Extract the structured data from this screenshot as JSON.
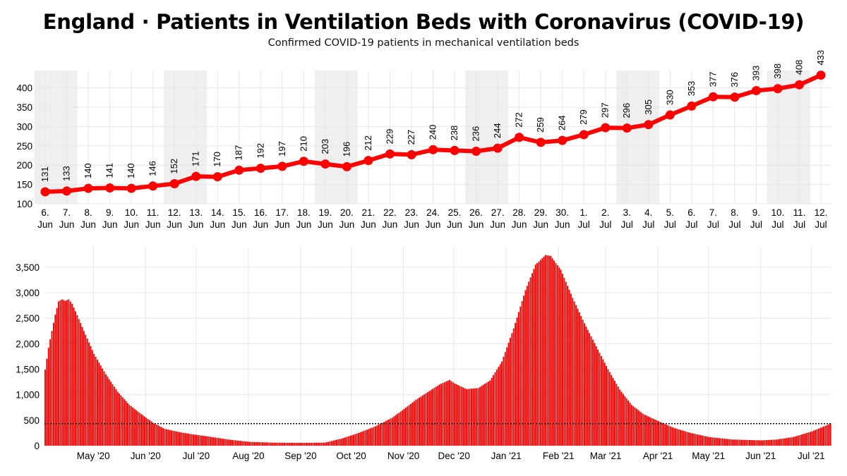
{
  "header": {
    "title": "England · Patients in Ventilation Beds with Coronavirus (COVID-19)",
    "subtitle": "Confirmed COVID-19 patients in mechanical ventilation beds"
  },
  "colors": {
    "series": "#ff0000",
    "weekend_band": "#efefef",
    "grid": "#e6e6e6",
    "reference_line": "#000000"
  },
  "chart_data": [
    {
      "type": "line",
      "title": "",
      "x": [
        "6. Jun",
        "7. Jun",
        "8. Jun",
        "9. Jun",
        "10. Jun",
        "11. Jun",
        "12. Jun",
        "13. Jun",
        "14. Jun",
        "15. Jun",
        "16. Jun",
        "17. Jun",
        "18. Jun",
        "19. Jun",
        "20. Jun",
        "21. Jun",
        "22. Jun",
        "23. Jun",
        "24. Jun",
        "25. Jun",
        "26. Jun",
        "27. Jun",
        "28. Jun",
        "29. Jun",
        "30. Jun",
        "1. Jul",
        "2. Jul",
        "3. Jul",
        "4. Jul",
        "5. Jul",
        "6. Jul",
        "7. Jul",
        "8. Jul",
        "9. Jul",
        "10. Jul",
        "11. Jul",
        "12. Jul"
      ],
      "x_day": [
        "6.",
        "7.",
        "8.",
        "9.",
        "10.",
        "11.",
        "12.",
        "13.",
        "14.",
        "15.",
        "16.",
        "17.",
        "18.",
        "19.",
        "20.",
        "21.",
        "22.",
        "23.",
        "24.",
        "25.",
        "26.",
        "27.",
        "28.",
        "29.",
        "30.",
        "1.",
        "2.",
        "3.",
        "4.",
        "5.",
        "6.",
        "7.",
        "8.",
        "9.",
        "10.",
        "11.",
        "12."
      ],
      "x_month": [
        "Jun",
        "Jun",
        "Jun",
        "Jun",
        "Jun",
        "Jun",
        "Jun",
        "Jun",
        "Jun",
        "Jun",
        "Jun",
        "Jun",
        "Jun",
        "Jun",
        "Jun",
        "Jun",
        "Jun",
        "Jun",
        "Jun",
        "Jun",
        "Jun",
        "Jun",
        "Jun",
        "Jun",
        "Jun",
        "Jul",
        "Jul",
        "Jul",
        "Jul",
        "Jul",
        "Jul",
        "Jul",
        "Jul",
        "Jul",
        "Jul",
        "Jul",
        "Jul"
      ],
      "values": [
        131,
        133,
        140,
        141,
        140,
        146,
        152,
        171,
        170,
        187,
        192,
        197,
        210,
        203,
        196,
        212,
        229,
        227,
        240,
        238,
        236,
        244,
        272,
        259,
        264,
        279,
        297,
        296,
        305,
        330,
        353,
        377,
        376,
        393,
        398,
        408,
        433
      ],
      "data_labels": [
        "131",
        "133",
        "140",
        "141",
        "140",
        "146",
        "152",
        "171",
        "170",
        "187",
        "192",
        "197",
        "210",
        "203",
        "196",
        "212",
        "229",
        "227",
        "240",
        "238",
        "236",
        "244",
        "272",
        "259",
        "264",
        "279",
        "297",
        "296",
        "305",
        "330",
        "353",
        "377",
        "376",
        "393",
        "398",
        "408",
        "433"
      ],
      "weekend_bands": [
        [
          "6. Jun",
          "7. Jun"
        ],
        [
          "12. Jun",
          "13. Jun"
        ],
        [
          "19. Jun",
          "20. Jun"
        ],
        [
          "26. Jun",
          "27. Jun"
        ],
        [
          "3. Jul",
          "4. Jul"
        ],
        [
          "10. Jul",
          "11. Jul"
        ]
      ],
      "ylim": [
        100,
        445
      ],
      "yticks": [
        100,
        150,
        200,
        250,
        300,
        350,
        400
      ],
      "ytick_labels": [
        "100",
        "150",
        "200",
        "250",
        "300",
        "350",
        "400"
      ],
      "grid": true
    },
    {
      "type": "bar",
      "title": "",
      "start_date": "2020-04-02",
      "keypoints": [
        [
          "2020-04-02",
          1490
        ],
        [
          "2020-04-04",
          1920
        ],
        [
          "2020-04-06",
          2250
        ],
        [
          "2020-04-08",
          2570
        ],
        [
          "2020-04-10",
          2830
        ],
        [
          "2020-04-12",
          2870
        ],
        [
          "2020-04-14",
          2840
        ],
        [
          "2020-04-16",
          2870
        ],
        [
          "2020-04-18",
          2780
        ],
        [
          "2020-04-21",
          2560
        ],
        [
          "2020-04-25",
          2250
        ],
        [
          "2020-05-01",
          1800
        ],
        [
          "2020-05-08",
          1400
        ],
        [
          "2020-05-15",
          1060
        ],
        [
          "2020-05-22",
          800
        ],
        [
          "2020-05-29",
          620
        ],
        [
          "2020-06-05",
          450
        ],
        [
          "2020-06-12",
          330
        ],
        [
          "2020-06-20",
          270
        ],
        [
          "2020-06-28",
          225
        ],
        [
          "2020-07-08",
          180
        ],
        [
          "2020-07-20",
          120
        ],
        [
          "2020-08-01",
          75
        ],
        [
          "2020-08-15",
          60
        ],
        [
          "2020-09-01",
          55
        ],
        [
          "2020-09-15",
          60
        ],
        [
          "2020-09-25",
          140
        ],
        [
          "2020-10-05",
          250
        ],
        [
          "2020-10-15",
          380
        ],
        [
          "2020-10-25",
          550
        ],
        [
          "2020-11-01",
          720
        ],
        [
          "2020-11-08",
          900
        ],
        [
          "2020-11-15",
          1050
        ],
        [
          "2020-11-22",
          1200
        ],
        [
          "2020-11-28",
          1290
        ],
        [
          "2020-12-01",
          1220
        ],
        [
          "2020-12-08",
          1110
        ],
        [
          "2020-12-15",
          1130
        ],
        [
          "2020-12-22",
          1280
        ],
        [
          "2020-12-29",
          1650
        ],
        [
          "2021-01-05",
          2300
        ],
        [
          "2021-01-12",
          3050
        ],
        [
          "2021-01-18",
          3550
        ],
        [
          "2021-01-24",
          3740
        ],
        [
          "2021-01-27",
          3720
        ],
        [
          "2021-02-02",
          3450
        ],
        [
          "2021-02-09",
          2900
        ],
        [
          "2021-02-16",
          2400
        ],
        [
          "2021-02-23",
          1950
        ],
        [
          "2021-03-02",
          1500
        ],
        [
          "2021-03-09",
          1100
        ],
        [
          "2021-03-16",
          800
        ],
        [
          "2021-03-23",
          620
        ],
        [
          "2021-04-01",
          480
        ],
        [
          "2021-04-10",
          350
        ],
        [
          "2021-04-20",
          250
        ],
        [
          "2021-05-01",
          170
        ],
        [
          "2021-05-15",
          120
        ],
        [
          "2021-06-01",
          105
        ],
        [
          "2021-06-10",
          120
        ],
        [
          "2021-06-20",
          170
        ],
        [
          "2021-07-01",
          280
        ],
        [
          "2021-07-12",
          433
        ]
      ],
      "reference_line": 433,
      "ylim": [
        0,
        3900
      ],
      "yticks": [
        0,
        500,
        1000,
        1500,
        2000,
        2500,
        3000,
        3500
      ],
      "ytick_labels": [
        "0",
        "500",
        "1,000",
        "1,500",
        "2,000",
        "2,500",
        "3,000",
        "3,500"
      ],
      "month_ticks": [
        [
          "2020-05-01",
          "May '20"
        ],
        [
          "2020-06-01",
          "Jun '20"
        ],
        [
          "2020-07-01",
          "Jul '20"
        ],
        [
          "2020-08-01",
          "Aug '20"
        ],
        [
          "2020-09-01",
          "Sep '20"
        ],
        [
          "2020-10-01",
          "Oct '20"
        ],
        [
          "2020-11-01",
          "Nov '20"
        ],
        [
          "2020-12-01",
          "Dec '20"
        ],
        [
          "2021-01-01",
          "Jan '21"
        ],
        [
          "2021-02-01",
          "Feb '21"
        ],
        [
          "2021-03-01",
          "Mar '21"
        ],
        [
          "2021-04-01",
          "Apr '21"
        ],
        [
          "2021-05-01",
          "May '21"
        ],
        [
          "2021-06-01",
          "Jun '21"
        ],
        [
          "2021-07-01",
          "Jul '21"
        ]
      ],
      "end_date": "2021-07-12",
      "grid": true
    }
  ]
}
